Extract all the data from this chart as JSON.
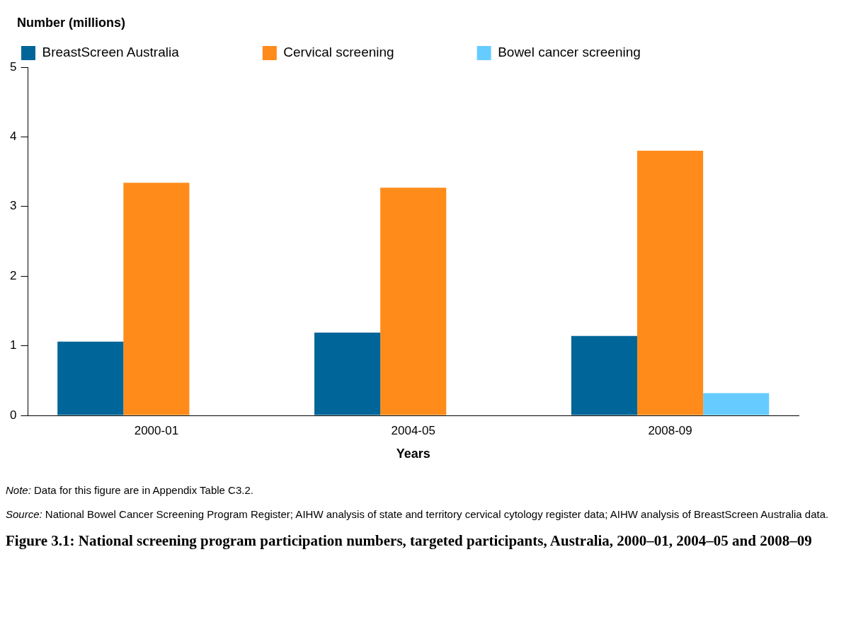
{
  "chart_data": {
    "type": "bar",
    "title": "Figure 3.1: National screening program participation numbers, targeted participants, Australia, 2000–01, 2004–05 and 2008–09",
    "ylabel": "Number (millions)",
    "xlabel": "Years",
    "categories": [
      "2000-01",
      "2004-05",
      "2008-09"
    ],
    "series": [
      {
        "name": "BreastScreen Australia",
        "color": "#006699",
        "values": [
          1.06,
          1.19,
          1.14
        ]
      },
      {
        "name": "Cervical screening",
        "color": "#ff8c1a",
        "values": [
          3.34,
          3.27,
          3.8
        ]
      },
      {
        "name": "Bowel cancer screening",
        "color": "#66ccff",
        "values": [
          null,
          null,
          0.32
        ]
      }
    ],
    "ylim": [
      0,
      5
    ],
    "yticks": [
      0,
      1,
      2,
      3,
      4,
      5
    ],
    "grid": false,
    "legend": "top",
    "annotations": [
      "Note: Data for this figure are in Appendix Table C3.2.",
      "Source: National Bowel Cancer Screening Program Register; AIHW analysis of state and territory cervical cytology register data; AIHW analysis of BreastScreen Australia data."
    ]
  }
}
